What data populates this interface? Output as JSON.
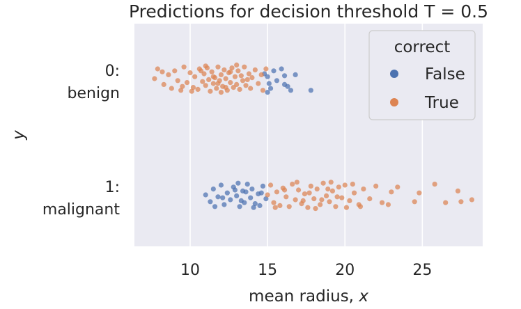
{
  "chart_data": {
    "type": "scatter",
    "subtype": "strip",
    "title": "Predictions for decision threshold T = 0.5",
    "xlabel": "mean radius, ",
    "xlabel_var": "x",
    "ylabel": "y",
    "xlim": [
      6.4,
      28.9
    ],
    "xticks": [
      "10",
      "15",
      "20",
      "25"
    ],
    "categories": [
      {
        "line1": "0:",
        "line2": "benign"
      },
      {
        "line1": "1:",
        "line2": "malignant"
      }
    ],
    "grid": true,
    "legend": {
      "title": "correct",
      "position": "upper-right"
    },
    "series": [
      {
        "name": "False",
        "color": "#4c72b0",
        "points": [
          {
            "cat": 0,
            "x": 15.0,
            "j": -0.02
          },
          {
            "cat": 0,
            "x": 15.1,
            "j": 0.05
          },
          {
            "cat": 0,
            "x": 14.8,
            "j": -0.05
          },
          {
            "cat": 0,
            "x": 15.4,
            "j": -0.08
          },
          {
            "cat": 0,
            "x": 15.2,
            "j": 0.1
          },
          {
            "cat": 0,
            "x": 15.6,
            "j": 0.02
          },
          {
            "cat": 0,
            "x": 15.9,
            "j": -0.1
          },
          {
            "cat": 0,
            "x": 16.1,
            "j": -0.03
          },
          {
            "cat": 0,
            "x": 16.3,
            "j": 0.08
          },
          {
            "cat": 0,
            "x": 16.8,
            "j": -0.04
          },
          {
            "cat": 0,
            "x": 16.5,
            "j": 0.12
          },
          {
            "cat": 0,
            "x": 16.1,
            "j": 0.06
          },
          {
            "cat": 0,
            "x": 15.0,
            "j": 0.14
          },
          {
            "cat": 0,
            "x": 17.8,
            "j": 0.12
          },
          {
            "cat": 1,
            "x": 11.0,
            "j": 0.0
          },
          {
            "cat": 1,
            "x": 11.3,
            "j": 0.07
          },
          {
            "cat": 1,
            "x": 11.5,
            "j": -0.06
          },
          {
            "cat": 1,
            "x": 11.8,
            "j": 0.02
          },
          {
            "cat": 1,
            "x": 12.0,
            "j": -0.1
          },
          {
            "cat": 1,
            "x": 12.2,
            "j": 0.1
          },
          {
            "cat": 1,
            "x": 12.4,
            "j": -0.02
          },
          {
            "cat": 1,
            "x": 12.6,
            "j": 0.05
          },
          {
            "cat": 1,
            "x": 12.8,
            "j": -0.08
          },
          {
            "cat": 1,
            "x": 13.0,
            "j": 0.01
          },
          {
            "cat": 1,
            "x": 13.2,
            "j": 0.12
          },
          {
            "cat": 1,
            "x": 13.4,
            "j": -0.04
          },
          {
            "cat": 1,
            "x": 13.5,
            "j": 0.08
          },
          {
            "cat": 1,
            "x": 13.7,
            "j": -0.11
          },
          {
            "cat": 1,
            "x": 13.9,
            "j": 0.03
          },
          {
            "cat": 1,
            "x": 14.0,
            "j": -0.06
          },
          {
            "cat": 1,
            "x": 14.2,
            "j": 0.09
          },
          {
            "cat": 1,
            "x": 14.4,
            "j": -0.01
          },
          {
            "cat": 1,
            "x": 14.5,
            "j": 0.11
          },
          {
            "cat": 1,
            "x": 14.7,
            "j": -0.09
          },
          {
            "cat": 1,
            "x": 14.9,
            "j": 0.04
          },
          {
            "cat": 1,
            "x": 12.1,
            "j": 0.03
          },
          {
            "cat": 1,
            "x": 13.1,
            "j": -0.12
          },
          {
            "cat": 1,
            "x": 13.6,
            "j": -0.03
          },
          {
            "cat": 1,
            "x": 11.6,
            "j": 0.12
          },
          {
            "cat": 1,
            "x": 14.1,
            "j": 0.13
          },
          {
            "cat": 1,
            "x": 12.9,
            "j": -0.05
          },
          {
            "cat": 1,
            "x": 13.3,
            "j": 0.06
          },
          {
            "cat": 1,
            "x": 14.6,
            "j": -0.02
          }
        ]
      },
      {
        "name": "True",
        "color": "#dd8452",
        "points": [
          {
            "cat": 0,
            "x": 7.7,
            "j": 0.0
          },
          {
            "cat": 0,
            "x": 7.9,
            "j": -0.1
          },
          {
            "cat": 0,
            "x": 8.3,
            "j": 0.06
          },
          {
            "cat": 0,
            "x": 8.6,
            "j": -0.04
          },
          {
            "cat": 0,
            "x": 8.8,
            "j": 0.1
          },
          {
            "cat": 0,
            "x": 9.0,
            "j": -0.08
          },
          {
            "cat": 0,
            "x": 9.2,
            "j": 0.02
          },
          {
            "cat": 0,
            "x": 9.4,
            "j": 0.12
          },
          {
            "cat": 0,
            "x": 9.6,
            "j": -0.12
          },
          {
            "cat": 0,
            "x": 9.8,
            "j": 0.04
          },
          {
            "cat": 0,
            "x": 10.0,
            "j": -0.06
          },
          {
            "cat": 0,
            "x": 10.2,
            "j": 0.09
          },
          {
            "cat": 0,
            "x": 10.3,
            "j": -0.02
          },
          {
            "cat": 0,
            "x": 10.5,
            "j": 0.11
          },
          {
            "cat": 0,
            "x": 10.6,
            "j": -0.1
          },
          {
            "cat": 0,
            "x": 10.8,
            "j": 0.03
          },
          {
            "cat": 0,
            "x": 10.9,
            "j": -0.05
          },
          {
            "cat": 0,
            "x": 11.0,
            "j": 0.07
          },
          {
            "cat": 0,
            "x": 11.1,
            "j": -0.11
          },
          {
            "cat": 0,
            "x": 11.2,
            "j": 0.01
          },
          {
            "cat": 0,
            "x": 11.3,
            "j": 0.13
          },
          {
            "cat": 0,
            "x": 11.4,
            "j": -0.07
          },
          {
            "cat": 0,
            "x": 11.5,
            "j": 0.05
          },
          {
            "cat": 0,
            "x": 11.6,
            "j": -0.01
          },
          {
            "cat": 0,
            "x": 11.7,
            "j": 0.1
          },
          {
            "cat": 0,
            "x": 11.8,
            "j": -0.12
          },
          {
            "cat": 0,
            "x": 11.9,
            "j": 0.02
          },
          {
            "cat": 0,
            "x": 12.0,
            "j": -0.04
          },
          {
            "cat": 0,
            "x": 12.1,
            "j": 0.08
          },
          {
            "cat": 0,
            "x": 12.2,
            "j": -0.09
          },
          {
            "cat": 0,
            "x": 12.3,
            "j": 0.0
          },
          {
            "cat": 0,
            "x": 12.4,
            "j": 0.12
          },
          {
            "cat": 0,
            "x": 12.5,
            "j": -0.06
          },
          {
            "cat": 0,
            "x": 12.6,
            "j": 0.04
          },
          {
            "cat": 0,
            "x": 12.7,
            "j": -0.11
          },
          {
            "cat": 0,
            "x": 12.8,
            "j": 0.09
          },
          {
            "cat": 0,
            "x": 12.9,
            "j": -0.02
          },
          {
            "cat": 0,
            "x": 13.0,
            "j": 0.06
          },
          {
            "cat": 0,
            "x": 13.1,
            "j": -0.08
          },
          {
            "cat": 0,
            "x": 13.2,
            "j": 0.11
          },
          {
            "cat": 0,
            "x": 13.3,
            "j": -0.03
          },
          {
            "cat": 0,
            "x": 13.4,
            "j": 0.02
          },
          {
            "cat": 0,
            "x": 13.5,
            "j": -0.12
          },
          {
            "cat": 0,
            "x": 13.6,
            "j": 0.07
          },
          {
            "cat": 0,
            "x": 13.8,
            "j": -0.05
          },
          {
            "cat": 0,
            "x": 13.9,
            "j": 0.1
          },
          {
            "cat": 0,
            "x": 14.0,
            "j": -0.01
          },
          {
            "cat": 0,
            "x": 14.2,
            "j": -0.09
          },
          {
            "cat": 0,
            "x": 14.4,
            "j": 0.05
          },
          {
            "cat": 0,
            "x": 14.6,
            "j": -0.04
          },
          {
            "cat": 0,
            "x": 14.7,
            "j": 0.12
          },
          {
            "cat": 0,
            "x": 14.9,
            "j": -0.1
          },
          {
            "cat": 0,
            "x": 10.1,
            "j": 0.13
          },
          {
            "cat": 0,
            "x": 11.0,
            "j": -0.13
          },
          {
            "cat": 0,
            "x": 12.0,
            "j": 0.14
          },
          {
            "cat": 0,
            "x": 13.0,
            "j": -0.14
          },
          {
            "cat": 0,
            "x": 9.5,
            "j": 0.08
          },
          {
            "cat": 0,
            "x": 8.2,
            "j": -0.07
          },
          {
            "cat": 0,
            "x": 11.8,
            "j": 0.05
          },
          {
            "cat": 0,
            "x": 12.6,
            "j": -0.07
          },
          {
            "cat": 0,
            "x": 10.7,
            "j": -0.08
          },
          {
            "cat": 0,
            "x": 13.7,
            "j": 0.01
          },
          {
            "cat": 0,
            "x": 11.5,
            "j": -0.02
          },
          {
            "cat": 0,
            "x": 12.3,
            "j": 0.09
          },
          {
            "cat": 1,
            "x": 15.0,
            "j": 0.0
          },
          {
            "cat": 1,
            "x": 15.2,
            "j": -0.1
          },
          {
            "cat": 1,
            "x": 15.4,
            "j": 0.08
          },
          {
            "cat": 1,
            "x": 15.6,
            "j": -0.03
          },
          {
            "cat": 1,
            "x": 15.8,
            "j": 0.11
          },
          {
            "cat": 1,
            "x": 16.0,
            "j": -0.07
          },
          {
            "cat": 1,
            "x": 16.2,
            "j": 0.02
          },
          {
            "cat": 1,
            "x": 16.4,
            "j": 0.12
          },
          {
            "cat": 1,
            "x": 16.6,
            "j": -0.11
          },
          {
            "cat": 1,
            "x": 16.8,
            "j": 0.05
          },
          {
            "cat": 1,
            "x": 17.0,
            "j": -0.05
          },
          {
            "cat": 1,
            "x": 17.2,
            "j": 0.09
          },
          {
            "cat": 1,
            "x": 17.4,
            "j": -0.01
          },
          {
            "cat": 1,
            "x": 17.6,
            "j": 0.13
          },
          {
            "cat": 1,
            "x": 17.8,
            "j": -0.09
          },
          {
            "cat": 1,
            "x": 18.0,
            "j": 0.04
          },
          {
            "cat": 1,
            "x": 18.2,
            "j": -0.06
          },
          {
            "cat": 1,
            "x": 18.4,
            "j": 0.1
          },
          {
            "cat": 1,
            "x": 18.6,
            "j": -0.12
          },
          {
            "cat": 1,
            "x": 18.8,
            "j": 0.01
          },
          {
            "cat": 1,
            "x": 19.0,
            "j": 0.07
          },
          {
            "cat": 1,
            "x": 19.2,
            "j": -0.04
          },
          {
            "cat": 1,
            "x": 19.4,
            "j": 0.12
          },
          {
            "cat": 1,
            "x": 19.6,
            "j": -0.08
          },
          {
            "cat": 1,
            "x": 19.8,
            "j": 0.03
          },
          {
            "cat": 1,
            "x": 20.0,
            "j": -0.1
          },
          {
            "cat": 1,
            "x": 20.3,
            "j": 0.06
          },
          {
            "cat": 1,
            "x": 20.6,
            "j": -0.02
          },
          {
            "cat": 1,
            "x": 20.9,
            "j": 0.1
          },
          {
            "cat": 1,
            "x": 21.2,
            "j": -0.06
          },
          {
            "cat": 1,
            "x": 21.6,
            "j": 0.04
          },
          {
            "cat": 1,
            "x": 22.0,
            "j": -0.09
          },
          {
            "cat": 1,
            "x": 22.4,
            "j": 0.08
          },
          {
            "cat": 1,
            "x": 23.0,
            "j": -0.03
          },
          {
            "cat": 1,
            "x": 23.4,
            "j": -0.08
          },
          {
            "cat": 1,
            "x": 24.5,
            "j": 0.07
          },
          {
            "cat": 1,
            "x": 24.8,
            "j": -0.02
          },
          {
            "cat": 1,
            "x": 25.8,
            "j": -0.11
          },
          {
            "cat": 1,
            "x": 27.3,
            "j": -0.04
          },
          {
            "cat": 1,
            "x": 27.5,
            "j": 0.07
          },
          {
            "cat": 1,
            "x": 28.2,
            "j": 0.05
          },
          {
            "cat": 1,
            "x": 15.5,
            "j": 0.13
          },
          {
            "cat": 1,
            "x": 16.9,
            "j": -0.13
          },
          {
            "cat": 1,
            "x": 18.1,
            "j": 0.14
          },
          {
            "cat": 1,
            "x": 19.1,
            "j": -0.13
          },
          {
            "cat": 1,
            "x": 20.1,
            "j": 0.13
          },
          {
            "cat": 1,
            "x": 17.3,
            "j": 0.06
          },
          {
            "cat": 1,
            "x": 18.9,
            "j": -0.06
          },
          {
            "cat": 1,
            "x": 16.1,
            "j": -0.05
          },
          {
            "cat": 1,
            "x": 19.5,
            "j": 0.02
          },
          {
            "cat": 1,
            "x": 21.0,
            "j": 0.12
          },
          {
            "cat": 1,
            "x": 26.5,
            "j": 0.08
          },
          {
            "cat": 1,
            "x": 22.8,
            "j": 0.1
          },
          {
            "cat": 1,
            "x": 18.5,
            "j": 0.05
          },
          {
            "cat": 1,
            "x": 17.7,
            "j": -0.02
          },
          {
            "cat": 1,
            "x": 20.5,
            "j": -0.11
          }
        ]
      }
    ]
  }
}
